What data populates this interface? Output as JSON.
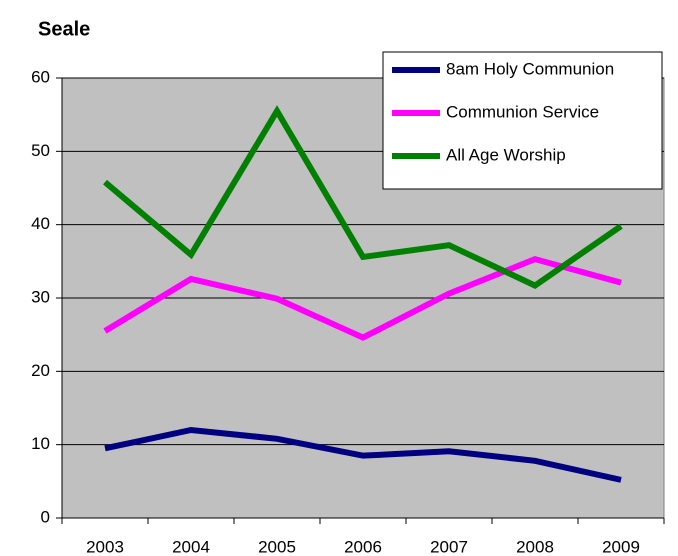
{
  "chart_data": {
    "type": "line",
    "title": "Seale",
    "categories": [
      "2003",
      "2004",
      "2005",
      "2006",
      "2007",
      "2008",
      "2009"
    ],
    "series": [
      {
        "name": "8am Holy Communion",
        "color": "#000080",
        "values": [
          9.5,
          12,
          10.8,
          8.5,
          9.1,
          7.8,
          5.2
        ]
      },
      {
        "name": "Communion Service",
        "color": "#ff00ff",
        "values": [
          25.5,
          32.6,
          29.9,
          24.6,
          30.6,
          35.3,
          32.1
        ]
      },
      {
        "name": "All Age Worship",
        "color": "#008000",
        "values": [
          45.8,
          35.9,
          55.5,
          35.6,
          37.2,
          31.7,
          39.8
        ]
      }
    ],
    "ylim": [
      0,
      60
    ],
    "yticks": [
      0,
      10,
      20,
      30,
      40,
      50,
      60
    ],
    "grid": true,
    "legend": "top-right"
  }
}
